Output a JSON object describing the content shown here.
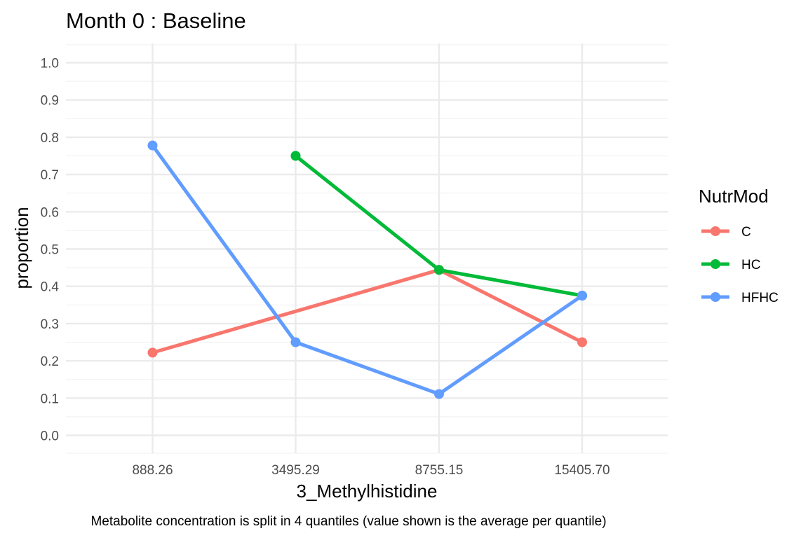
{
  "chart_data": {
    "type": "line",
    "title": "Month 0 : Baseline",
    "xlabel": "3_Methylhistidine",
    "ylabel": "proportion",
    "caption": "Metabolite concentration is split in 4 quantiles (value shown is the average per quantile)",
    "categories": [
      "888.26",
      "3495.29",
      "8755.15",
      "15405.70"
    ],
    "ylim": [
      0.0,
      1.0
    ],
    "y_ticks": [
      "0.0",
      "0.1",
      "0.2",
      "0.3",
      "0.4",
      "0.5",
      "0.6",
      "0.7",
      "0.8",
      "0.9",
      "1.0"
    ],
    "grid": true,
    "legend": {
      "title": "NutrMod",
      "position": "right"
    },
    "series": [
      {
        "name": "C",
        "color": "#F8766D",
        "values": [
          0.222,
          null,
          0.444,
          0.25
        ]
      },
      {
        "name": "HC",
        "color": "#00BA38",
        "values": [
          null,
          0.75,
          0.444,
          0.375
        ]
      },
      {
        "name": "HFHC",
        "color": "#619CFF",
        "values": [
          0.778,
          0.25,
          0.111,
          0.375
        ]
      }
    ]
  }
}
